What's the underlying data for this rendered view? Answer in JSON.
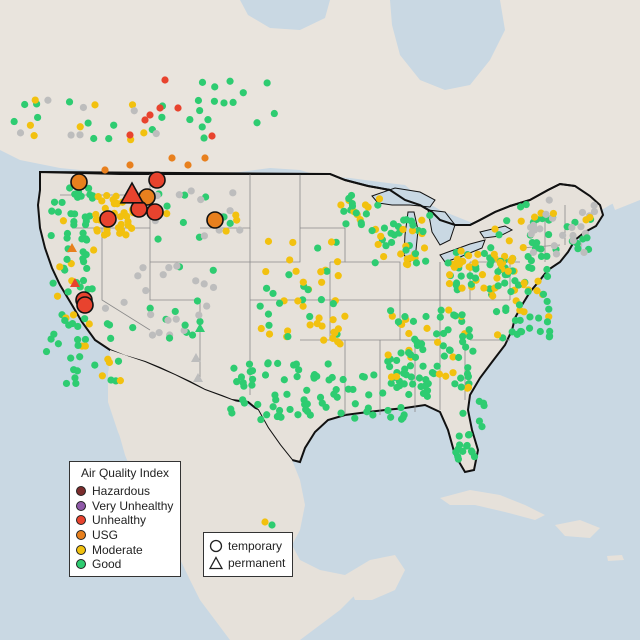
{
  "legend": {
    "title": "Air Quality Index",
    "categories": [
      {
        "label": "Hazardous",
        "color": "#7b2c2c"
      },
      {
        "label": "Very Unhealthy",
        "color": "#8f59a8"
      },
      {
        "label": "Unhealthy",
        "color": "#e8432e"
      },
      {
        "label": "USG",
        "color": "#e8801e"
      },
      {
        "label": "Moderate",
        "color": "#f2c10f"
      },
      {
        "label": "Good",
        "color": "#2ecc71"
      }
    ]
  },
  "marker_legend": {
    "temporary_label": "temporary",
    "permanent_label": "permanent",
    "temporary_icon": "circle-icon",
    "permanent_icon": "triangle-icon"
  },
  "colors": {
    "water": "#c9d8e3",
    "land": "#e6e1da",
    "border": "#111111",
    "state_line": "#8a8a8a",
    "no_data": "#bdbdbd"
  }
}
